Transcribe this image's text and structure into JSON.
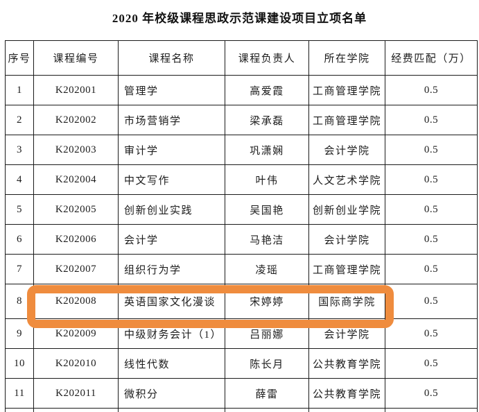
{
  "title": "2020 年校级课程思政示范课建设项目立项名单",
  "table": {
    "headers": [
      "序号",
      "课程编号",
      "课程名称",
      "课程负责人",
      "所在学院",
      "经费匹配（万）"
    ],
    "rows": [
      [
        "1",
        "K202001",
        "管理学",
        "高爱霞",
        "工商管理学院",
        "0.5"
      ],
      [
        "2",
        "K202002",
        "市场营销学",
        "梁承磊",
        "工商管理学院",
        "0.5"
      ],
      [
        "3",
        "K202003",
        "审计学",
        "巩潇娴",
        "会计学院",
        "0.5"
      ],
      [
        "4",
        "K202004",
        "中文写作",
        "叶伟",
        "人文艺术学院",
        "0.5"
      ],
      [
        "5",
        "K202005",
        "创新创业实践",
        "吴国艳",
        "创新创业学院",
        "0.5"
      ],
      [
        "6",
        "K202006",
        "会计学",
        "马艳洁",
        "会计学院",
        "0.5"
      ],
      [
        "7",
        "K202007",
        "组织行为学",
        "凌瑶",
        "工商管理学院",
        "0.5"
      ],
      [
        "8",
        "K202008",
        "英语国家文化漫谈",
        "宋婷婷",
        "国际商学院",
        "0.5"
      ],
      [
        "9",
        "K202009",
        "中级财务会计（1）",
        "吕丽娜",
        "会计学院",
        "0.5"
      ],
      [
        "10",
        "K202010",
        "线性代数",
        "陈长月",
        "公共教育学院",
        "0.5"
      ],
      [
        "11",
        "K202011",
        "微积分",
        "薛雷",
        "公共教育学院",
        "0.5"
      ]
    ],
    "highlighted_row_index": 7
  },
  "highlight": {
    "color": "#EF8C3E"
  }
}
